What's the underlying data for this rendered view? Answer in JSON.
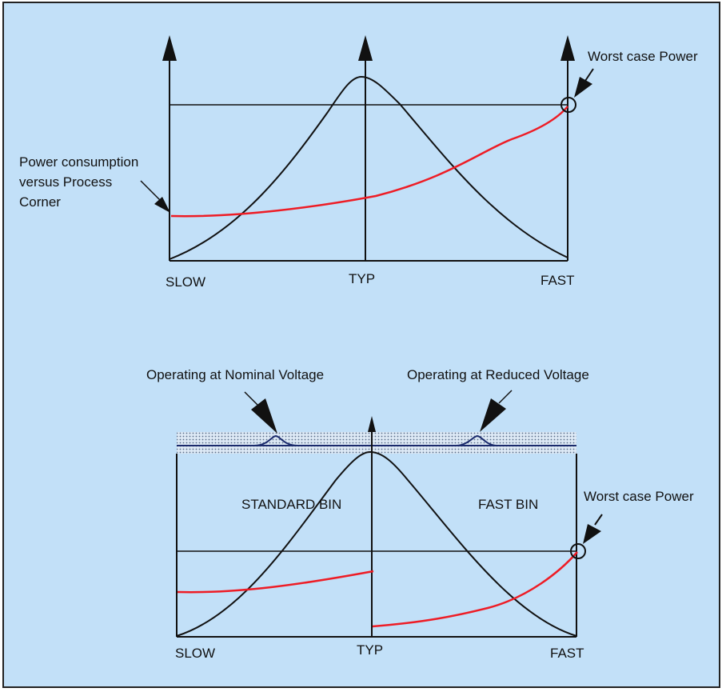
{
  "colors": {
    "background": "#c2e0f8",
    "border": "#222222",
    "line": "#111111",
    "power_curve": "#ee1c25",
    "bus_fill": "#dde9f5"
  },
  "top_diagram": {
    "tick_labels": [
      "SLOW",
      "TYP",
      "FAST"
    ],
    "callout_power_consumption": [
      "Power consumption",
      "versus Process",
      "Corner"
    ],
    "callout_worst_case": "Worst case Power"
  },
  "bottom_diagram": {
    "tick_labels": [
      "SLOW",
      "TYP",
      "FAST"
    ],
    "bin_labels": [
      "STANDARD BIN",
      "FAST BIN"
    ],
    "callout_nominal": "Operating at Nominal Voltage",
    "callout_reduced": "Operating at Reduced Voltage",
    "callout_worst_case": "Worst case Power"
  }
}
